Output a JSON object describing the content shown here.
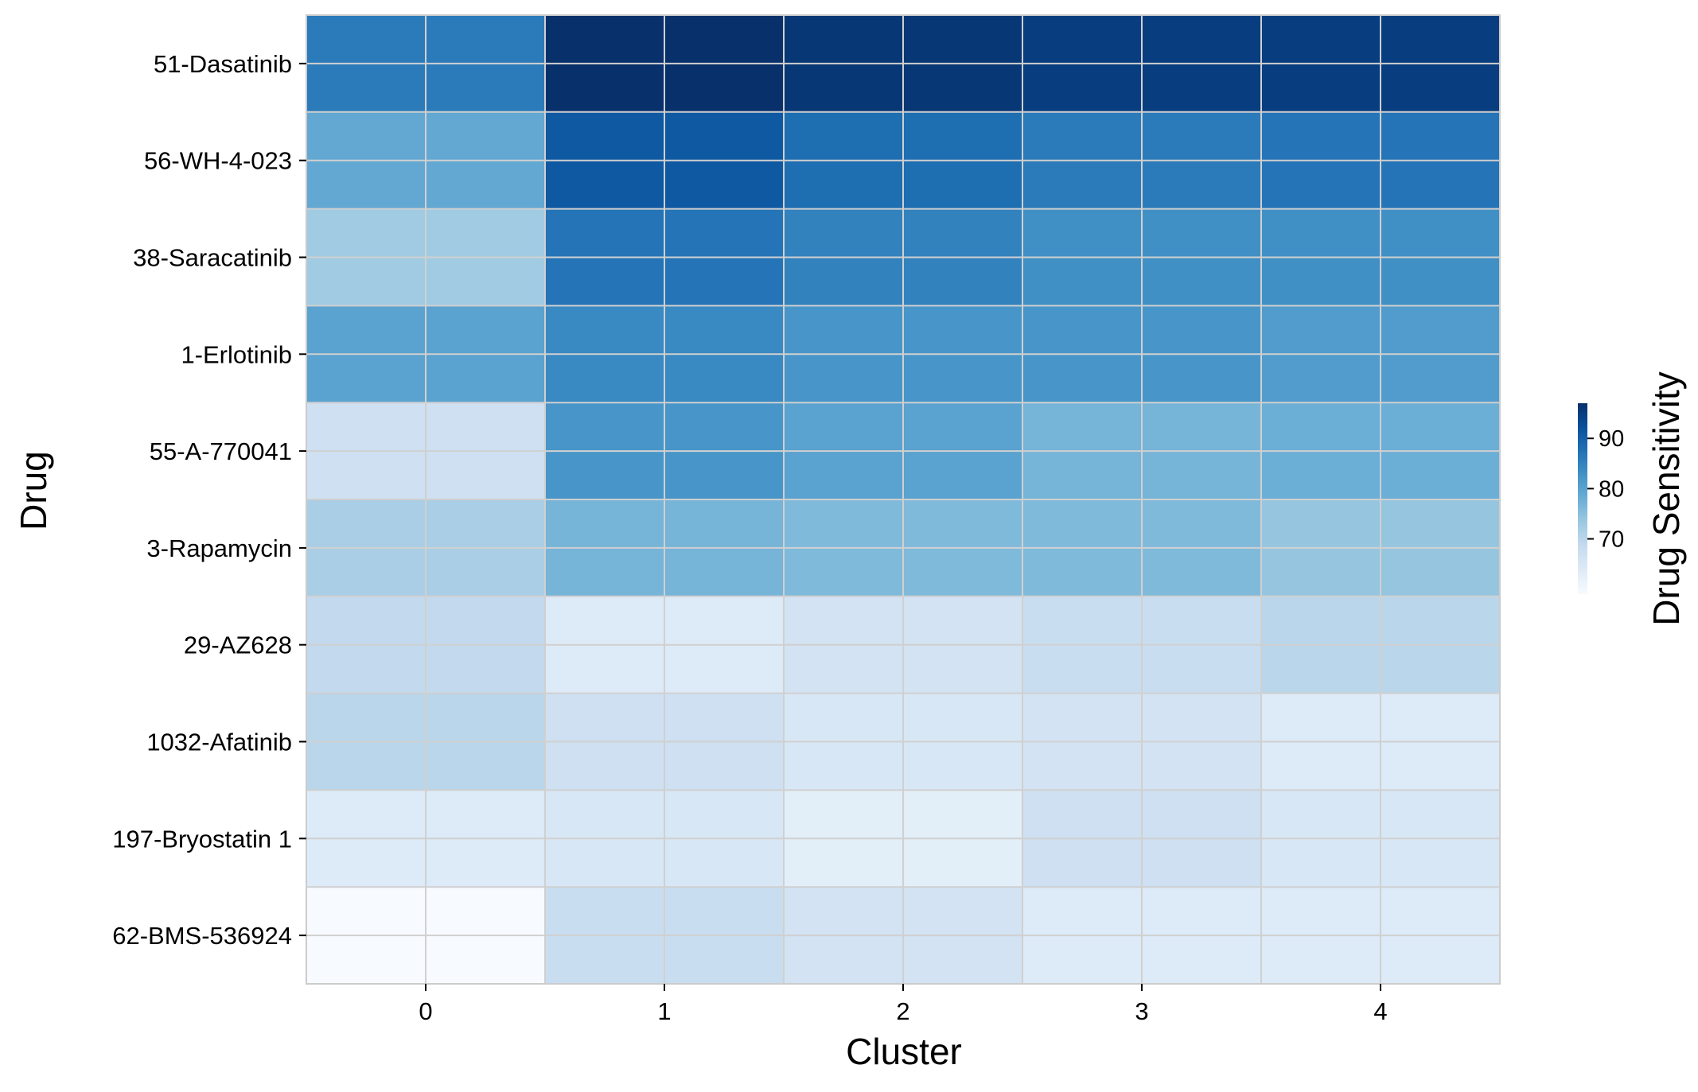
{
  "chart_data": {
    "type": "heatmap",
    "xlabel": "Cluster",
    "ylabel": "Drug",
    "x_categories": [
      "0",
      "1",
      "2",
      "3",
      "4"
    ],
    "y_categories": [
      "51-Dasatinib",
      "56-WH-4-023",
      "38-Saracatinib",
      "1-Erlotinib",
      "55-A-770041",
      "3-Rapamycin",
      "29-AZ628",
      "1032-Afatinib",
      "197-Bryostatin 1",
      "62-BMS-536924"
    ],
    "values": [
      [
        86,
        97,
        96,
        95,
        95
      ],
      [
        79,
        91,
        88,
        86,
        87
      ],
      [
        73,
        87,
        85,
        83,
        83
      ],
      [
        80,
        84,
        82,
        82,
        81
      ],
      [
        67,
        82,
        80,
        77,
        78
      ],
      [
        72,
        77,
        76,
        76,
        74
      ],
      [
        69,
        64,
        66,
        68,
        70
      ],
      [
        70,
        67,
        65,
        66,
        64
      ],
      [
        64,
        65,
        63,
        67,
        65
      ],
      [
        59,
        68,
        66,
        64,
        64
      ]
    ],
    "colorbar": {
      "label": "Drug Sensitivity",
      "ticks": [
        70,
        80,
        90
      ],
      "min": 59,
      "max": 97,
      "colormap": "Blues"
    },
    "grid": true
  }
}
